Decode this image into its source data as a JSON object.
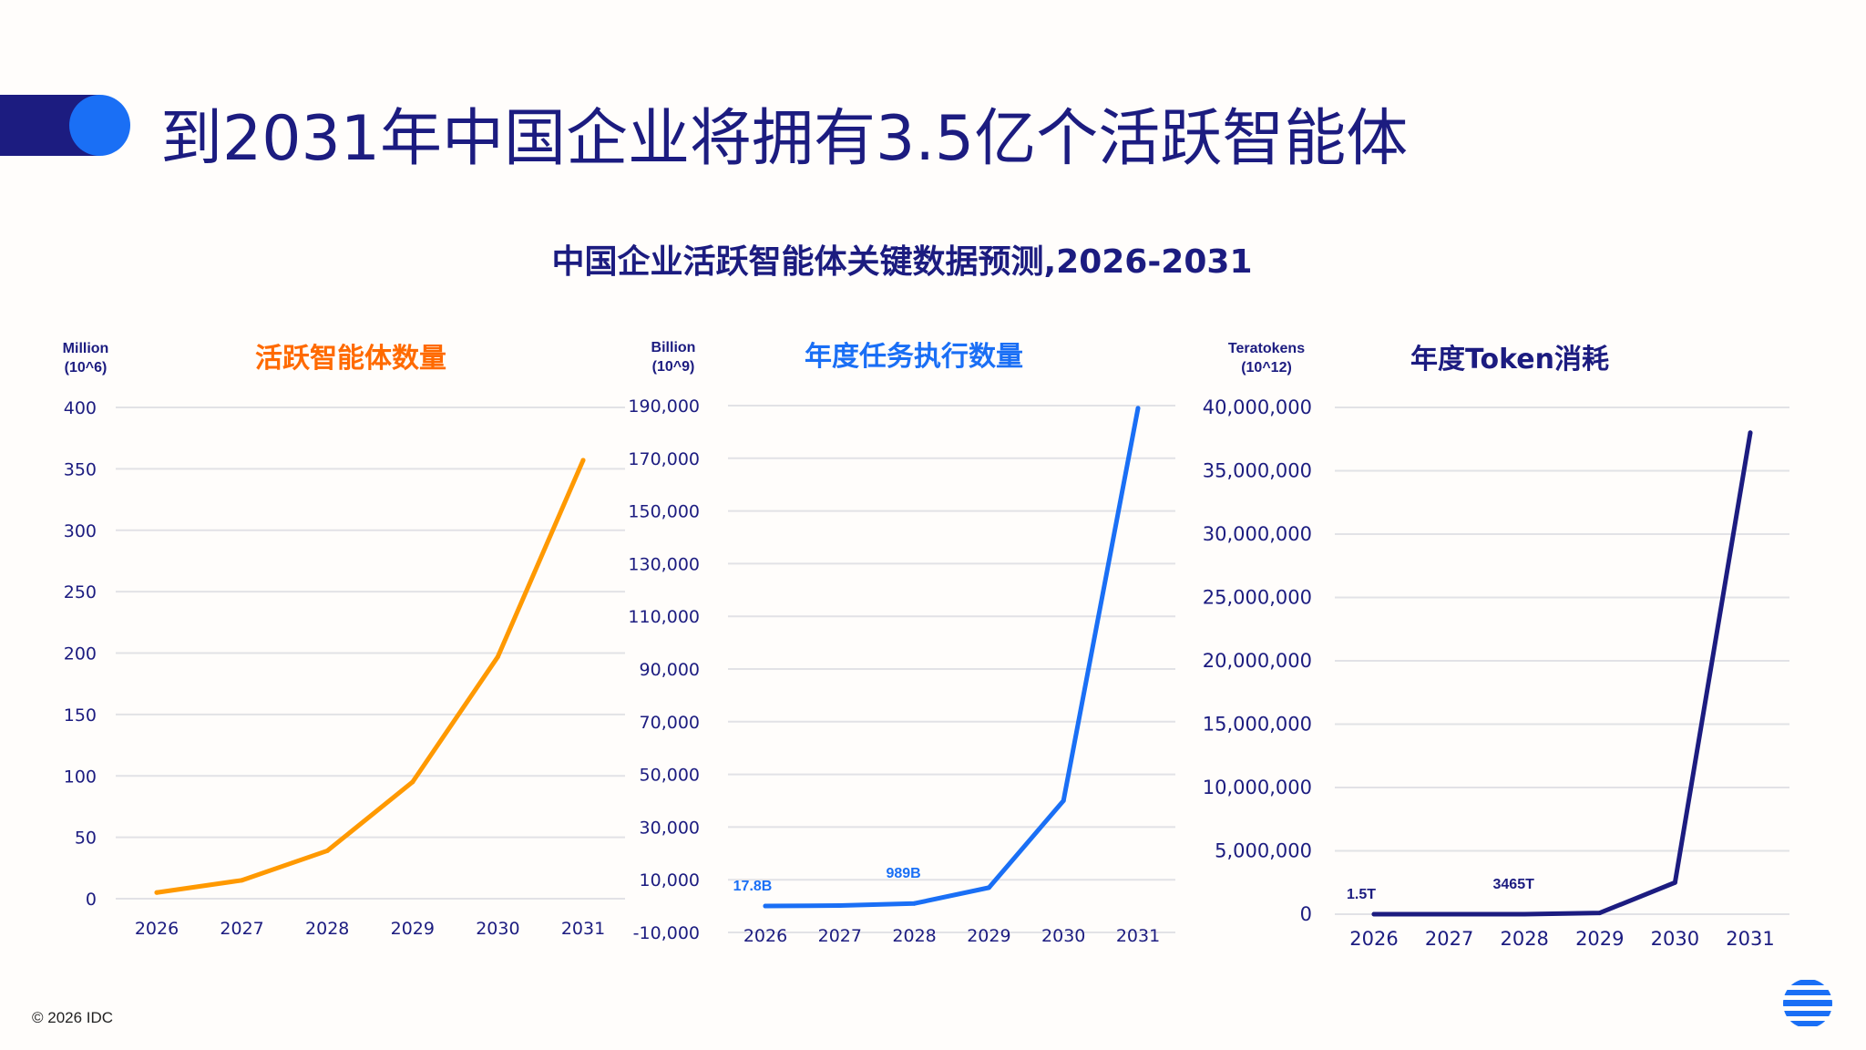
{
  "header": {
    "title": "到2031年中国企业将拥有3.5亿个活跃智能体"
  },
  "subtitle": "中国企业活跃智能体关键数据预测,2026-2031",
  "footer": {
    "copyright": "© 2026 IDC"
  },
  "colors": {
    "navy": "#1c1c80",
    "blue": "#1a6ff5",
    "orange": "#ff9900",
    "orange_title": "#ff6a00"
  },
  "chart_data": [
    {
      "type": "line",
      "title": "活跃智能体数量",
      "unit_label": [
        "Million",
        "(10^6)"
      ],
      "categories": [
        "2026",
        "2027",
        "2028",
        "2029",
        "2030",
        "2031"
      ],
      "values": [
        5,
        15,
        39,
        95,
        197,
        357
      ],
      "ylim": [
        0,
        400
      ],
      "yticks": [
        0,
        50,
        100,
        150,
        200,
        250,
        300,
        350,
        400
      ],
      "ytick_labels": [
        "0",
        "50",
        "100",
        "150",
        "200",
        "250",
        "300",
        "350",
        "400"
      ],
      "color": "#ff9900",
      "title_color": "#ff6a00",
      "annotations": [],
      "grid": true
    },
    {
      "type": "line",
      "title": "年度任务执行数量",
      "unit_label": [
        "Billion",
        "(10^9)"
      ],
      "categories": [
        "2026",
        "2027",
        "2028",
        "2029",
        "2030",
        "2031"
      ],
      "values": [
        17.8,
        200,
        989,
        7000,
        40000,
        189000
      ],
      "ylim": [
        -10000,
        190000
      ],
      "yticks": [
        -10000,
        10000,
        30000,
        50000,
        70000,
        90000,
        110000,
        130000,
        150000,
        170000,
        190000
      ],
      "ytick_labels": [
        "-10,000",
        "10,000",
        "30,000",
        "50,000",
        "70,000",
        "90,000",
        "110,000",
        "130,000",
        "150,000",
        "170,000",
        "190,000"
      ],
      "color": "#1a6ff5",
      "title_color": "#1a6ff5",
      "annotations": [
        {
          "category": "2026",
          "text": "17.8B"
        },
        {
          "category": "2028",
          "text": "989B"
        }
      ],
      "grid": true
    },
    {
      "type": "line",
      "title": "年度Token消耗",
      "unit_label": [
        "Teratokens",
        "(10^12)"
      ],
      "categories": [
        "2026",
        "2027",
        "2028",
        "2029",
        "2030",
        "2031"
      ],
      "values": [
        1.5,
        300,
        3465,
        100000,
        2500000,
        38000000
      ],
      "ylim": [
        0,
        40000000
      ],
      "yticks": [
        0,
        5000000,
        10000000,
        15000000,
        20000000,
        25000000,
        30000000,
        35000000,
        40000000
      ],
      "ytick_labels": [
        "0",
        "5,000,000",
        "10,000,000",
        "15,000,000",
        "20,000,000",
        "25,000,000",
        "30,000,000",
        "35,000,000",
        "40,000,000"
      ],
      "color": "#1c1c80",
      "title_color": "#1c1c80",
      "annotations": [
        {
          "category": "2026",
          "text": "1.5T"
        },
        {
          "category": "2028",
          "text": "3465T"
        }
      ],
      "grid": true
    }
  ]
}
